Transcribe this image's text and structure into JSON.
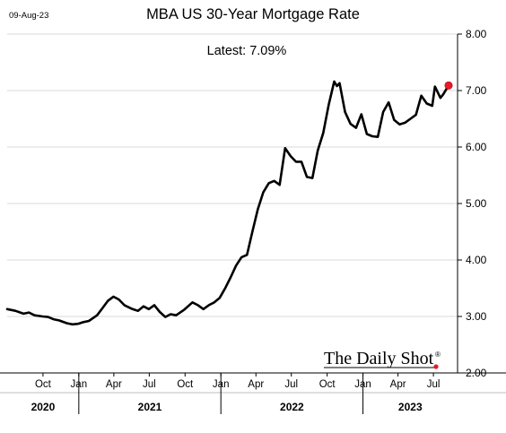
{
  "date_stamp": "09-Aug-23",
  "chart_data": {
    "type": "line",
    "title": "MBA US 30-Year Mortgage Rate",
    "annotation": "Latest:  7.09%",
    "watermark": "The Daily Shot",
    "watermark_mark": "®",
    "y_ticks": [
      "8.00",
      "7.00",
      "6.00",
      "5.00",
      "4.00",
      "3.00",
      "2.00"
    ],
    "ylim": [
      2.0,
      8.0
    ],
    "x_ticks": [
      {
        "label": "Oct",
        "date": "2020-10-01"
      },
      {
        "label": "Jan",
        "date": "2021-01-01"
      },
      {
        "label": "Apr",
        "date": "2021-04-01"
      },
      {
        "label": "Jul",
        "date": "2021-07-01"
      },
      {
        "label": "Oct",
        "date": "2021-10-01"
      },
      {
        "label": "Jan",
        "date": "2022-01-01"
      },
      {
        "label": "Apr",
        "date": "2022-04-01"
      },
      {
        "label": "Jul",
        "date": "2022-07-01"
      },
      {
        "label": "Oct",
        "date": "2022-10-01"
      },
      {
        "label": "Jan",
        "date": "2023-01-01"
      },
      {
        "label": "Apr",
        "date": "2023-04-01"
      },
      {
        "label": "Jul",
        "date": "2023-07-01"
      }
    ],
    "years": [
      {
        "label": "2020",
        "start": "2020-07-01",
        "end": "2021-01-01"
      },
      {
        "label": "2021",
        "start": "2021-01-01",
        "end": "2022-01-01"
      },
      {
        "label": "2022",
        "start": "2022-01-01",
        "end": "2023-01-01"
      },
      {
        "label": "2023",
        "start": "2023-01-01",
        "end": "2023-09-01"
      }
    ],
    "x_range": [
      "2020-07-01",
      "2023-09-01"
    ],
    "grid": "horizontal",
    "series": [
      {
        "color": "#000000",
        "points": [
          [
            "2020-07-01",
            3.13
          ],
          [
            "2020-07-22",
            3.1
          ],
          [
            "2020-08-12",
            3.05
          ],
          [
            "2020-08-26",
            3.07
          ],
          [
            "2020-09-09",
            3.02
          ],
          [
            "2020-09-30",
            3.0
          ],
          [
            "2020-10-14",
            2.99
          ],
          [
            "2020-10-28",
            2.95
          ],
          [
            "2020-11-11",
            2.93
          ],
          [
            "2020-12-02",
            2.88
          ],
          [
            "2020-12-16",
            2.86
          ],
          [
            "2020-12-30",
            2.87
          ],
          [
            "2021-01-13",
            2.9
          ],
          [
            "2021-01-27",
            2.92
          ],
          [
            "2021-02-17",
            3.02
          ],
          [
            "2021-03-03",
            3.15
          ],
          [
            "2021-03-17",
            3.28
          ],
          [
            "2021-03-31",
            3.35
          ],
          [
            "2021-04-14",
            3.3
          ],
          [
            "2021-04-28",
            3.2
          ],
          [
            "2021-05-19",
            3.13
          ],
          [
            "2021-06-02",
            3.1
          ],
          [
            "2021-06-16",
            3.18
          ],
          [
            "2021-06-30",
            3.13
          ],
          [
            "2021-07-14",
            3.2
          ],
          [
            "2021-07-28",
            3.08
          ],
          [
            "2021-08-11",
            2.99
          ],
          [
            "2021-08-25",
            3.04
          ],
          [
            "2021-09-08",
            3.02
          ],
          [
            "2021-09-29",
            3.12
          ],
          [
            "2021-10-20",
            3.25
          ],
          [
            "2021-11-03",
            3.2
          ],
          [
            "2021-11-17",
            3.13
          ],
          [
            "2021-12-01",
            3.2
          ],
          [
            "2021-12-15",
            3.25
          ],
          [
            "2021-12-29",
            3.33
          ],
          [
            "2022-01-12",
            3.5
          ],
          [
            "2022-01-26",
            3.69
          ],
          [
            "2022-02-09",
            3.9
          ],
          [
            "2022-02-23",
            4.05
          ],
          [
            "2022-03-09",
            4.09
          ],
          [
            "2022-03-23",
            4.5
          ],
          [
            "2022-04-06",
            4.9
          ],
          [
            "2022-04-20",
            5.2
          ],
          [
            "2022-05-04",
            5.36
          ],
          [
            "2022-05-18",
            5.4
          ],
          [
            "2022-06-01",
            5.33
          ],
          [
            "2022-06-15",
            5.98
          ],
          [
            "2022-06-29",
            5.84
          ],
          [
            "2022-07-13",
            5.74
          ],
          [
            "2022-07-27",
            5.74
          ],
          [
            "2022-08-10",
            5.47
          ],
          [
            "2022-08-24",
            5.45
          ],
          [
            "2022-09-07",
            5.94
          ],
          [
            "2022-09-21",
            6.25
          ],
          [
            "2022-10-05",
            6.75
          ],
          [
            "2022-10-19",
            7.16
          ],
          [
            "2022-10-26",
            7.08
          ],
          [
            "2022-11-02",
            7.13
          ],
          [
            "2022-11-16",
            6.62
          ],
          [
            "2022-11-30",
            6.41
          ],
          [
            "2022-12-14",
            6.34
          ],
          [
            "2022-12-28",
            6.58
          ],
          [
            "2023-01-11",
            6.23
          ],
          [
            "2023-01-25",
            6.19
          ],
          [
            "2023-02-08",
            6.18
          ],
          [
            "2023-02-22",
            6.62
          ],
          [
            "2023-03-08",
            6.79
          ],
          [
            "2023-03-22",
            6.48
          ],
          [
            "2023-04-05",
            6.4
          ],
          [
            "2023-04-19",
            6.43
          ],
          [
            "2023-05-03",
            6.5
          ],
          [
            "2023-05-17",
            6.57
          ],
          [
            "2023-05-31",
            6.91
          ],
          [
            "2023-06-14",
            6.77
          ],
          [
            "2023-06-28",
            6.73
          ],
          [
            "2023-07-05",
            7.07
          ],
          [
            "2023-07-19",
            6.87
          ],
          [
            "2023-07-26",
            6.93
          ],
          [
            "2023-08-09",
            7.09
          ]
        ]
      }
    ]
  }
}
